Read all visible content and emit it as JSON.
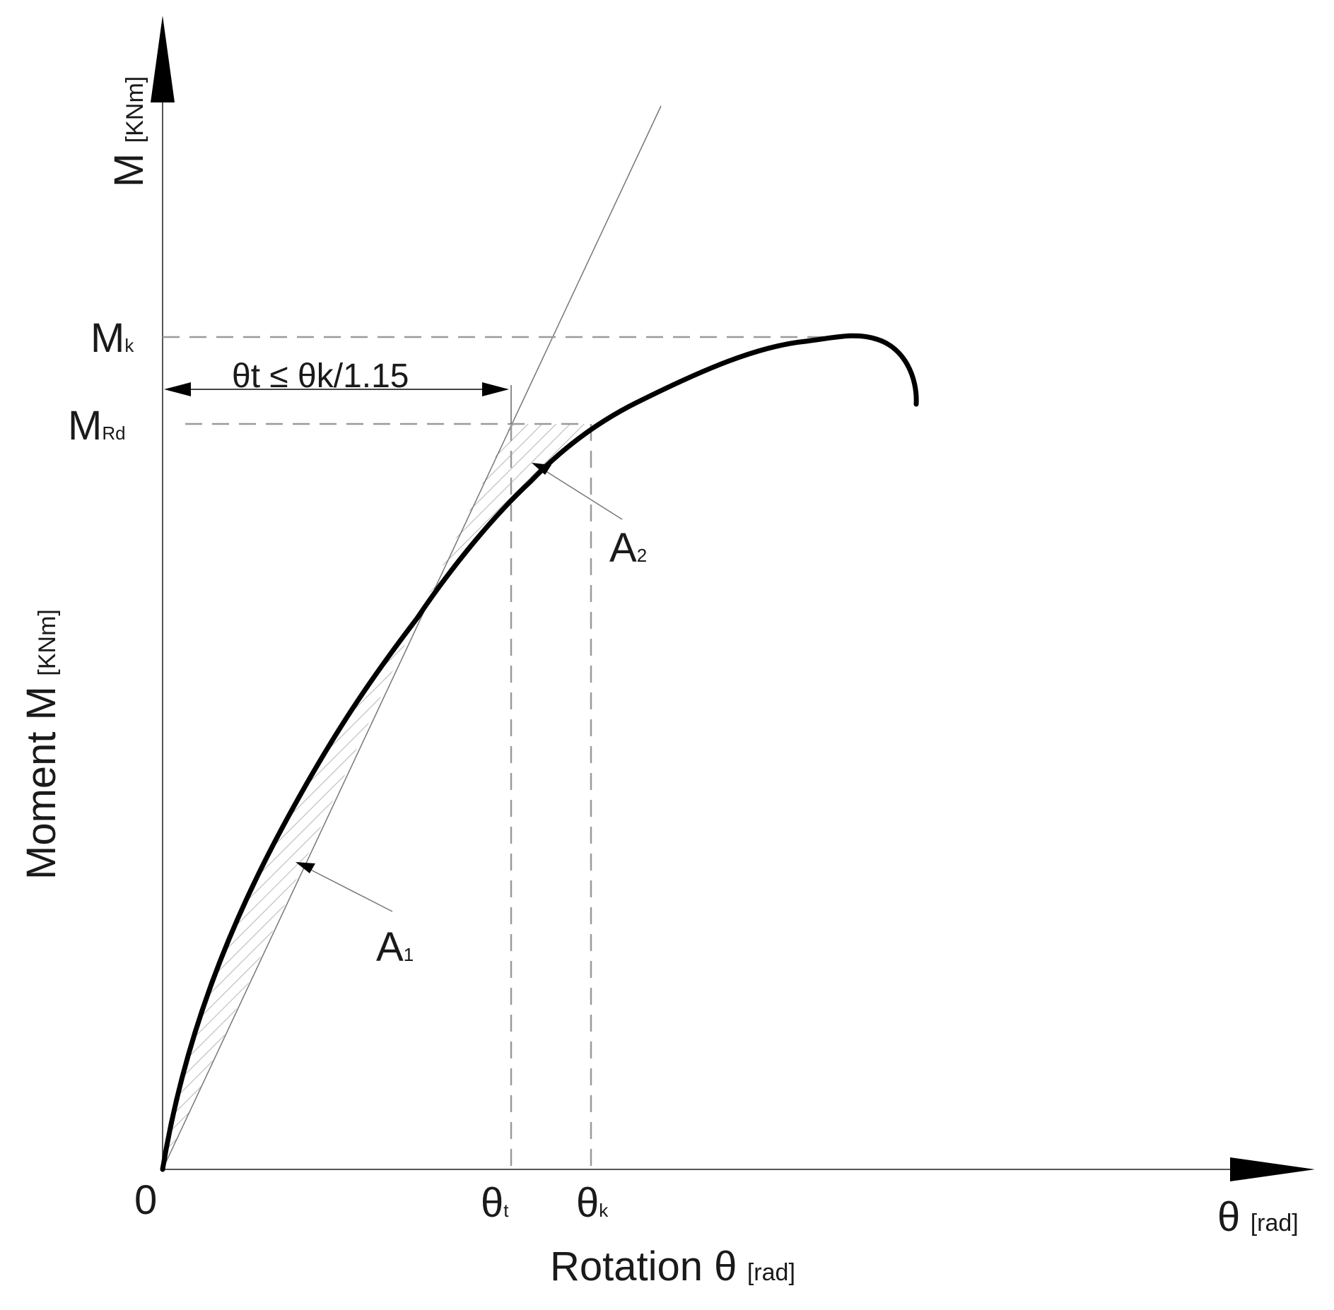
{
  "axes": {
    "y_top_label": {
      "main": "M",
      "unit": "[KNm]"
    },
    "y_side_label": {
      "main": "Moment M",
      "unit": "[KNm]"
    },
    "x_end_label": {
      "main": "θ",
      "unit": "[rad]"
    },
    "x_bottom_label": {
      "main": "Rotation θ",
      "unit": "[rad]"
    },
    "origin": "0"
  },
  "levels": {
    "mk": {
      "main": "M",
      "sub": "k"
    },
    "mrd": {
      "main": "M",
      "sub": "Rd"
    }
  },
  "rotations": {
    "theta_t": {
      "main": "θ",
      "sub": "t"
    },
    "theta_k": {
      "main": "θ",
      "sub": "k"
    }
  },
  "criterion": "θt ≤ θk/1.15",
  "areas": {
    "a1": {
      "main": "A",
      "sub": "1"
    },
    "a2": {
      "main": "A",
      "sub": "2"
    }
  }
}
